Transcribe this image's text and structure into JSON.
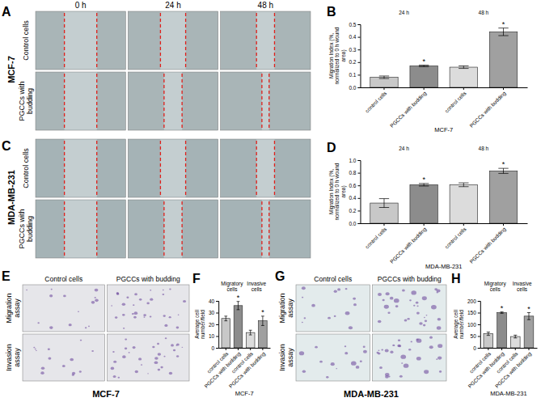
{
  "chart_data": [
    {
      "type": "bar",
      "panel": "B",
      "group_labels": [
        "24 h",
        "48 h"
      ],
      "categories": [
        "control cells",
        "PGCCs with budding",
        "control cells",
        "PGCCs with budding"
      ],
      "values": [
        0.08,
        0.17,
        0.16,
        0.44
      ],
      "errors": [
        0.01,
        0.006,
        0.01,
        0.03
      ],
      "colors": [
        "#c8c8c8",
        "#8c8c8c",
        "#dcdcdc",
        "#a0a0a0"
      ],
      "annotations": [
        {
          "index": 1,
          "text": "*"
        },
        {
          "index": 3,
          "text": "*"
        }
      ],
      "ylabel": "Migration Index (%, normalized to 0 h wound area)",
      "xlabel": "MCF-7",
      "ylim": [
        0,
        0.5
      ],
      "yticks": [
        {
          "value": 0,
          "label": "0.0"
        },
        0.1,
        0.2,
        0.3,
        0.4,
        0.5
      ]
    },
    {
      "type": "bar",
      "panel": "D",
      "group_labels": [
        "24 h",
        "48 h"
      ],
      "categories": [
        "control cells",
        "PGCCs with budding",
        "control cells",
        "PGCCs with budding"
      ],
      "values": [
        0.32,
        0.61,
        0.61,
        0.83
      ],
      "errors": [
        0.07,
        0.02,
        0.03,
        0.04
      ],
      "colors": [
        "#c8c8c8",
        "#8c8c8c",
        "#dcdcdc",
        "#a0a0a0"
      ],
      "annotations": [
        {
          "index": 1,
          "text": "*"
        },
        {
          "index": 3,
          "text": "*"
        }
      ],
      "ylabel": "Migration Index (%, normalized to 0 h wound area)",
      "xlabel": "MDA-MB-231",
      "ylim": [
        0,
        1
      ],
      "yticks": [
        {
          "value": 0,
          "label": "0.0"
        },
        0.2,
        0.4,
        0.6,
        0.8,
        {
          "value": 1,
          "label": "1.0"
        }
      ]
    },
    {
      "type": "bar",
      "panel": "F",
      "group_labels": [
        "Migratory cells",
        "Invasive cells"
      ],
      "categories": [
        "control cells",
        "PGCCs with budding",
        "control cells",
        "PGCCs with budding"
      ],
      "values": [
        25,
        36,
        13,
        23
      ],
      "errors": [
        2,
        3.5,
        2,
        4
      ],
      "colors": [
        "#c8c8c8",
        "#8c8c8c",
        "#dcdcdc",
        "#a0a0a0"
      ],
      "annotations": [
        {
          "index": 1,
          "text": "*"
        },
        {
          "index": 3,
          "text": "*"
        }
      ],
      "ylabel": "Average cell number/field",
      "xlabel": "MCF-7",
      "ylim": [
        0,
        40
      ],
      "yticks": [
        0,
        10,
        20,
        30,
        40
      ]
    },
    {
      "type": "bar",
      "panel": "H",
      "group_labels": [
        "Migratory cells",
        "Invasive cells"
      ],
      "categories": [
        "control cells",
        "PGCCs with budding",
        "control cells",
        "PGCCs with budding"
      ],
      "values": [
        60,
        150,
        48,
        135
      ],
      "errors": [
        7,
        3,
        6,
        15
      ],
      "colors": [
        "#c8c8c8",
        "#8c8c8c",
        "#dcdcdc",
        "#a0a0a0"
      ],
      "annotations": [
        {
          "index": 1,
          "text": "*"
        },
        {
          "index": 3,
          "text": "*"
        }
      ],
      "ylabel": "Average cell number/field",
      "xlabel": "MDA-MB-231",
      "ylim": [
        0,
        200
      ],
      "yticks": [
        0,
        50,
        100,
        150,
        200
      ]
    }
  ],
  "figure": {
    "panels": [
      {
        "letter": "A",
        "cell_line": "MCF-7",
        "columns": [
          "0 h",
          "24 h",
          "48 h"
        ],
        "rows": [
          "Control cells",
          "PGCCs with budding"
        ]
      },
      {
        "letter": "C",
        "cell_line": "MDA-MB-231",
        "rows": [
          "Control cells",
          "PGCCs with budding"
        ]
      },
      {
        "letter": "E",
        "cell_line": "MCF-7",
        "columns": [
          "Control cells",
          "PGCCs with budding"
        ],
        "rows": [
          "Migration assay",
          "Invasion assay"
        ]
      },
      {
        "letter": "G",
        "cell_line": "MDA-MB-231",
        "columns": [
          "Control cells",
          "PGCCs with budding"
        ],
        "rows": [
          "Migration assay",
          "Invasion assay"
        ]
      }
    ]
  }
}
